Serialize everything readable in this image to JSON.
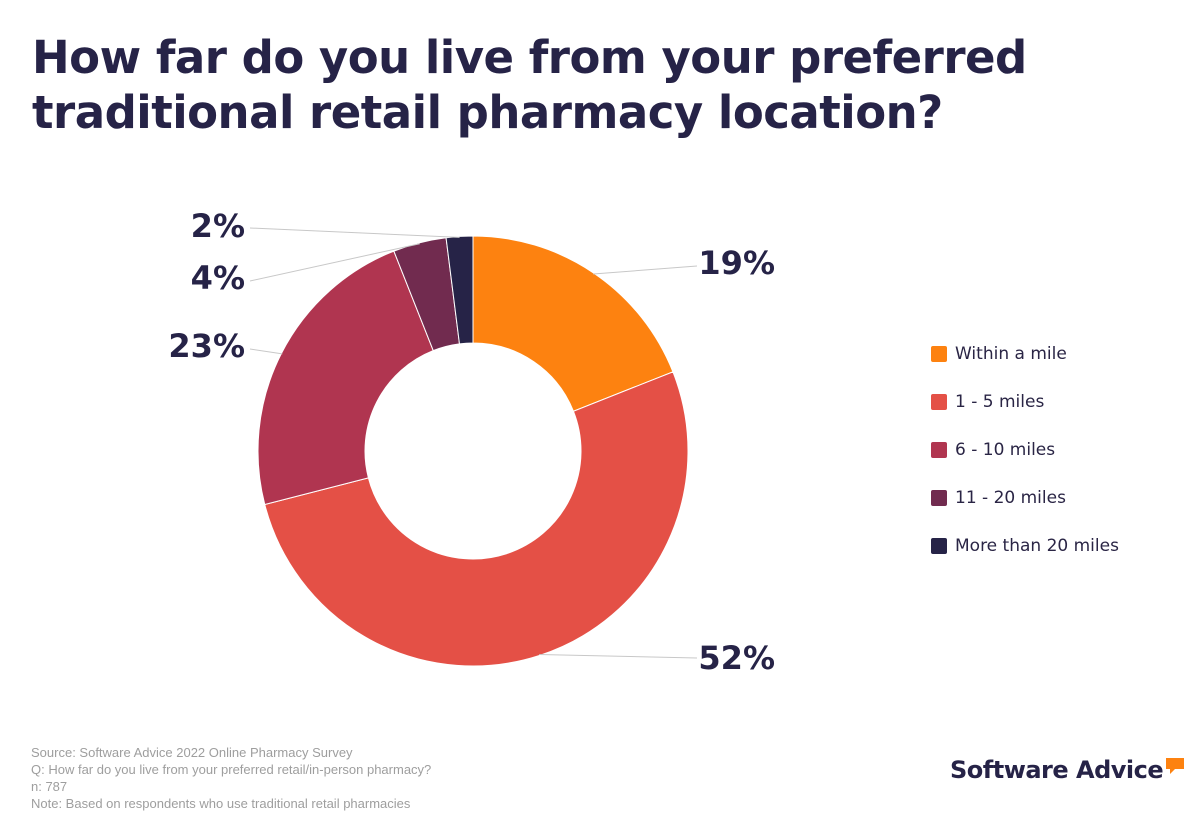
{
  "title": "How far do you live from your preferred traditional retail pharmacy location?",
  "chart_data": {
    "type": "pie",
    "style": "donut",
    "categories": [
      "Within a mile",
      "1 - 5 miles",
      "6 - 10 miles",
      "11 - 20 miles",
      "More than 20 miles"
    ],
    "values": [
      19,
      52,
      23,
      4,
      2
    ],
    "data_labels": [
      "19%",
      "52%",
      "23%",
      "4%",
      "2%"
    ],
    "colors": [
      "#fd8210",
      "#e45046",
      "#b03550",
      "#712b4f",
      "#262347"
    ],
    "legend_position": "right"
  },
  "footer": {
    "source": "Source: Software Advice 2022 Online Pharmacy Survey",
    "question": "Q: How far do you live from your preferred retail/in-person pharmacy?",
    "n": "n: 787",
    "note": "Note: Based on respondents who use traditional retail pharmacies"
  },
  "brand": {
    "name": "Software Advice",
    "accent_color": "#fd8210"
  }
}
